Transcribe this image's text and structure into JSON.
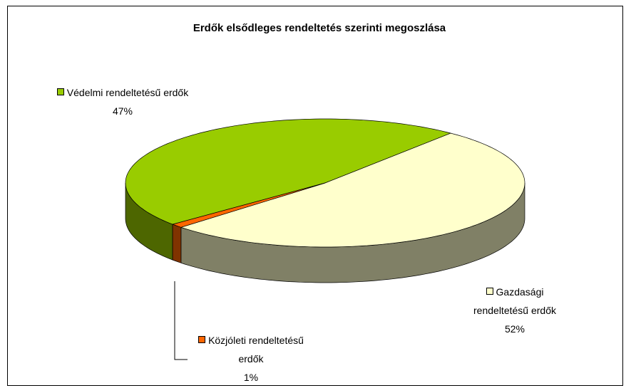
{
  "chart_data": {
    "type": "pie3d",
    "title": "Erdők elsődleges rendeltetés szerinti megoszlása",
    "categories": [
      "Védelmi rendeltetésű erdők",
      "Gazdasági rendeltetésű erdők",
      "Közjóleti rendeltetésű erdők"
    ],
    "values": [
      47,
      52,
      1
    ],
    "value_labels": [
      "47%",
      "52%",
      "1%"
    ],
    "colors": [
      "#99cc00",
      "#ffffcc",
      "#ff6600"
    ]
  }
}
